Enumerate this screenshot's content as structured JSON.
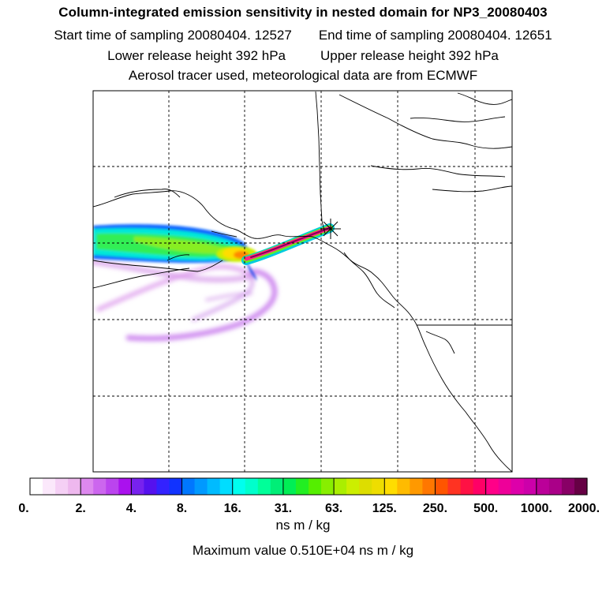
{
  "header": {
    "title": "Column-integrated emission sensitivity in nested domain for NP3_20080403",
    "start_time": "Start time of sampling 20080404. 12527",
    "end_time": "End time of sampling 20080404. 12651",
    "lower_release": "Lower release height  392 hPa",
    "upper_release": "Upper release height  392 hPa",
    "tracer_line": "Aerosol tracer used, meteorological data are from ECMWF"
  },
  "chart_data": {
    "type": "heatmap",
    "title": "Column-integrated emission sensitivity in nested domain for NP3_20080403",
    "units": "ns m / kg",
    "max_value": 5100,
    "max_label": "Maximum value  0.510E+04 ns m / kg",
    "release_marker": "release-location",
    "grid": true,
    "colorbar": {
      "tick_labels": [
        "0.",
        "2.",
        "4.",
        "8.",
        "16.",
        "31.",
        "63.",
        "125.",
        "250.",
        "500.",
        "1000.",
        "2000."
      ],
      "colors": [
        "#ffffff",
        "#fbe8fb",
        "#f5d0f5",
        "#eeb8ee",
        "#dd88ee",
        "#cc66ee",
        "#bb44ee",
        "#aa11ee",
        "#7722ee",
        "#5511ee",
        "#3322ff",
        "#1133ff",
        "#0077ff",
        "#0099ff",
        "#00bbff",
        "#00ddff",
        "#00ffee",
        "#00ffcc",
        "#00ff99",
        "#00ee77",
        "#00ee55",
        "#22ee22",
        "#55ee00",
        "#88ee00",
        "#aaee00",
        "#ccee00",
        "#dddd00",
        "#eedd00",
        "#ffdd00",
        "#ffbb00",
        "#ff9900",
        "#ff7700",
        "#ff5500",
        "#ff3322",
        "#ff1144",
        "#ff0066",
        "#ff0088",
        "#ee0099",
        "#dd00aa",
        "#cc00aa",
        "#bb0099",
        "#aa0088",
        "#880066",
        "#660044"
      ]
    }
  },
  "footer": {
    "units": "ns m / kg",
    "max_value": "Maximum value  0.510E+04 ns m / kg"
  }
}
